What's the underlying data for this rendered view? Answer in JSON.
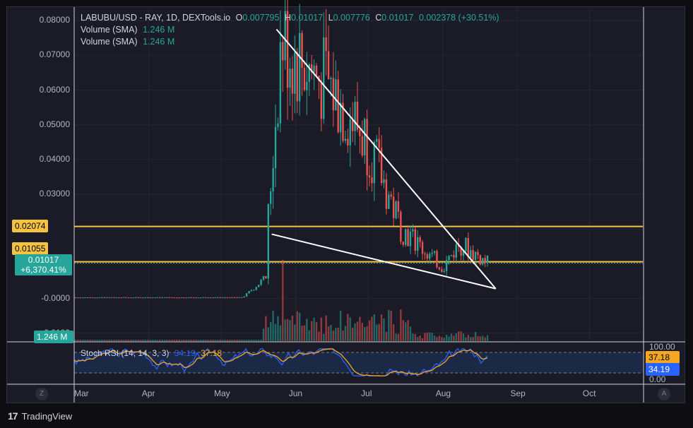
{
  "legend": {
    "symbol": "LABUBU/USD - RAY, 1D, DEXTools.io",
    "o_label": "O",
    "o_value": "0.007795",
    "h_label": "H",
    "h_value": "0.01017",
    "l_label": "L",
    "l_value": "0.007776",
    "c_label": "C",
    "c_value": "0.01017",
    "change": "0.002378 (+30.51%)",
    "volume1_label": "Volume (SMA)",
    "volume1_value": "1.246 M",
    "volume2_label": "Volume (SMA)",
    "volume2_value": "1.246 M"
  },
  "y_ticks": [
    "0.08000",
    "0.07000",
    "0.06000",
    "0.05000",
    "0.04000",
    "0.03000",
    "-0.0000",
    "-0.0100"
  ],
  "price_tags": {
    "level1": "0.02074",
    "level2": "0.01055",
    "current_price": "0.01017",
    "current_change": "+6,370.41%",
    "volume": "1.246 M"
  },
  "x_ticks": [
    "Mar",
    "Apr",
    "May",
    "Jun",
    "Jul",
    "Aug",
    "Sep",
    "Oct"
  ],
  "stoch": {
    "label": "Stoch RSI (14, 14, 3, 3)",
    "k_value": "34.19",
    "d_value": "37.18",
    "axis_top": "100.00",
    "axis_bottom": "0.00",
    "tag_d": "37.18",
    "tag_k": "34.19"
  },
  "buttons": {
    "goto_start": "Z",
    "auto_scale": "A"
  },
  "footer": {
    "brand": "TradingView",
    "logo": "17"
  },
  "colors": {
    "up": "#26a69a",
    "down": "#ef5350",
    "level": "#f5c242",
    "stoch_k": "#2962ff",
    "stoch_d": "#f5a623"
  },
  "chart_data": {
    "type": "candlestick",
    "interval": "1D",
    "y_range": [
      -0.0125,
      0.0835
    ],
    "levels": [
      0.02074,
      0.01055
    ],
    "last_close": 0.01017,
    "ohlc_keypoints": [
      {
        "date": "May 20",
        "price": 0.018
      },
      {
        "date": "May 26",
        "price": 0.075
      },
      {
        "date": "May 30",
        "price": 0.071
      },
      {
        "date": "Jun 15",
        "price": 0.061
      },
      {
        "date": "Jul 01",
        "price": 0.045
      },
      {
        "date": "Jul 15",
        "price": 0.02
      },
      {
        "date": "Aug 01",
        "price": 0.009
      },
      {
        "date": "Aug 08",
        "price": 0.016
      },
      {
        "date": "Aug 20",
        "price": 0.01
      }
    ],
    "trendlines": [
      {
        "from": {
          "date": "May 24",
          "price": 0.0775
        },
        "to": {
          "date": "Aug 23",
          "price": 0.0028
        }
      },
      {
        "from": {
          "date": "May 22",
          "price": 0.0185
        },
        "to": {
          "date": "Aug 23",
          "price": 0.0028
        }
      }
    ]
  }
}
